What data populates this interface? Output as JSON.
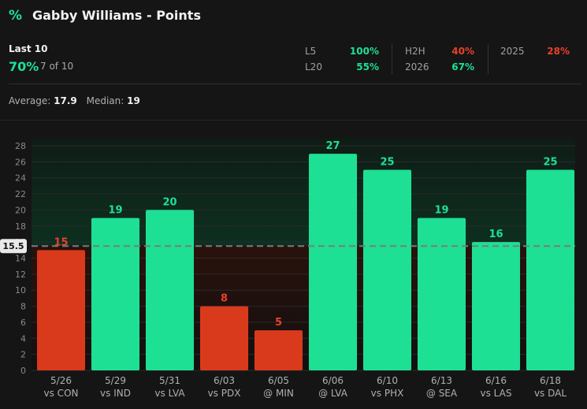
{
  "header": {
    "logo_icon": "percent-icon",
    "logo_glyph": "%",
    "title": "Gabby Williams - Points"
  },
  "summary": {
    "last_label": "Last 10",
    "hit_pct": "70%",
    "hit_count": "7 of 10",
    "stats": [
      {
        "label": "L5",
        "value": "100%",
        "status": "green"
      },
      {
        "label": "L20",
        "value": "55%",
        "status": "green"
      },
      {
        "label": "H2H",
        "value": "40%",
        "status": "red"
      },
      {
        "label": "2026",
        "value": "67%",
        "status": "green"
      },
      {
        "label": "2025",
        "value": "28%",
        "status": "red"
      }
    ],
    "average_label": "Average:",
    "average_value": "17.9",
    "median_label": "Median:",
    "median_value": "19"
  },
  "colors": {
    "hit": "#1ee094",
    "miss": "#d93a1c",
    "miss_label": "#e8402a",
    "line": "#7a7a7a"
  },
  "chart_data": {
    "type": "bar",
    "categories": [
      "5/26 vs CON",
      "5/29 vs IND",
      "5/31 vs LVA",
      "6/03 vs PDX",
      "6/05 @ MIN",
      "6/06 @ LVA",
      "6/10 vs PHX",
      "6/13 @ SEA",
      "6/16 vs LAS",
      "6/18 vs DAL"
    ],
    "dates": [
      "5/26",
      "5/29",
      "5/31",
      "6/03",
      "6/05",
      "6/06",
      "6/10",
      "6/13",
      "6/16",
      "6/18"
    ],
    "opponents": [
      "vs CON",
      "vs IND",
      "vs LVA",
      "vs PDX",
      "@ MIN",
      "@ LVA",
      "vs PHX",
      "@ SEA",
      "vs LAS",
      "vs DAL"
    ],
    "values": [
      15,
      19,
      20,
      8,
      5,
      27,
      25,
      19,
      16,
      25
    ],
    "line": 15.5,
    "line_label": "15.5",
    "ylim": [
      0,
      28
    ],
    "yticks": [
      0,
      2,
      4,
      6,
      8,
      10,
      12,
      14,
      16,
      18,
      20,
      22,
      24,
      26,
      28
    ],
    "grid": true
  }
}
